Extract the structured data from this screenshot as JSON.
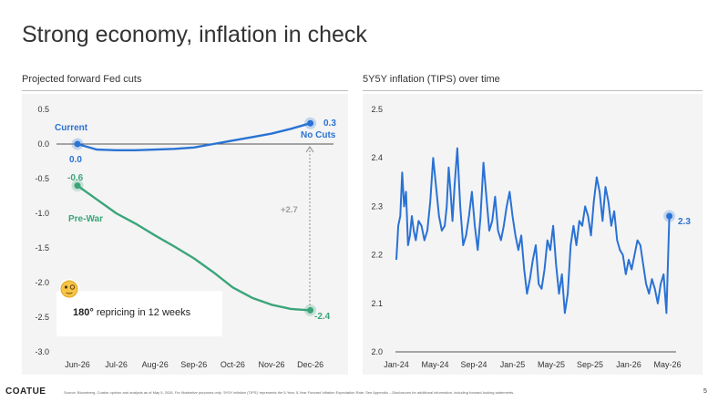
{
  "title": "Strong economy, inflation in check",
  "footer": {
    "logo": "COATUE",
    "source": "Source: Bloomberg, Coatue opinion and analysis as of May 5, 2026. For illustrative purposes only. '5Y5Y inflation (TIPS)' represents the 5-Year, 5-Year Forward Inflation Expectation Rate. See Appendix – Disclosures for additional information, including forward-looking statements.",
    "page": "5"
  },
  "colors": {
    "blue": "#2a72d4",
    "green": "#3aa57a",
    "grid": "#555555",
    "panel": "#f4f4f4"
  },
  "chart_data": [
    {
      "type": "line",
      "title": "Projected forward Fed cuts",
      "categories": [
        "Jun-26",
        "Jul-26",
        "Aug-26",
        "Sep-26",
        "Oct-26",
        "Nov-26",
        "Dec-26"
      ],
      "yticks": [
        "0.5",
        "0.0",
        "-0.5",
        "-1.0",
        "-1.5",
        "-2.0",
        "-2.5",
        "-3.0"
      ],
      "ylim": [
        -3.0,
        0.5
      ],
      "series": [
        {
          "name": "Current",
          "color": "#2a72d4",
          "x": [
            0,
            0.5,
            1,
            1.5,
            2,
            2.5,
            3,
            3.5,
            4,
            4.5,
            5,
            5.5,
            6
          ],
          "values": [
            0.0,
            -0.08,
            -0.09,
            -0.09,
            -0.08,
            -0.07,
            -0.05,
            0.0,
            0.05,
            0.1,
            0.15,
            0.22,
            0.3
          ]
        },
        {
          "name": "Pre-War",
          "color": "#3aa57a",
          "x": [
            0,
            0.5,
            1,
            1.5,
            2,
            2.5,
            3,
            3.5,
            4,
            4.5,
            5,
            5.5,
            6
          ],
          "values": [
            -0.6,
            -0.8,
            -1.0,
            -1.15,
            -1.32,
            -1.48,
            -1.65,
            -1.85,
            -2.07,
            -2.22,
            -2.32,
            -2.38,
            -2.4
          ]
        }
      ],
      "labels": {
        "current_name": "Current",
        "current_start": "0.0",
        "current_end": "0.3",
        "no_cuts": "No Cuts",
        "prewar_name": "Pre-War",
        "prewar_start": "-0.6",
        "prewar_end": "-2.4",
        "gap": "+2.7"
      },
      "callout": {
        "emoji": "🧐",
        "strong": "180°",
        "text": " repricing in 12 weeks"
      }
    },
    {
      "type": "line",
      "title": "5Y5Y inflation (TIPS) over time",
      "xticks": [
        "Jan-24",
        "May-24",
        "Sep-24",
        "Jan-25",
        "May-25",
        "Sep-25",
        "Jan-26",
        "May-26"
      ],
      "yticks": [
        "2.5",
        "2.4",
        "2.3",
        "2.2",
        "2.1",
        "2.0"
      ],
      "ylim": [
        2.0,
        2.5
      ],
      "xlim": [
        0,
        29
      ],
      "series": [
        {
          "name": "5Y5Y inflation (TIPS)",
          "color": "#2a72d4",
          "x": [
            0,
            0.2,
            0.4,
            0.6,
            0.8,
            1.0,
            1.2,
            1.4,
            1.6,
            1.8,
            2.0,
            2.3,
            2.6,
            2.9,
            3.2,
            3.5,
            3.8,
            4.1,
            4.4,
            4.7,
            5.0,
            5.2,
            5.4,
            5.6,
            5.8,
            6.0,
            6.3,
            6.6,
            6.9,
            7.2,
            7.5,
            7.8,
            8.1,
            8.4,
            8.7,
            9.0,
            9.3,
            9.6,
            9.9,
            10.2,
            10.5,
            10.8,
            11.1,
            11.4,
            11.7,
            12.0,
            12.3,
            12.6,
            12.9,
            13.2,
            13.5,
            13.8,
            14.1,
            14.4,
            14.7,
            15.0,
            15.3,
            15.6,
            15.9,
            16.2,
            16.5,
            16.8,
            17.1,
            17.4,
            17.7,
            18.0,
            18.3,
            18.6,
            18.9,
            19.2,
            19.5,
            19.8,
            20.1,
            20.4,
            20.7,
            21.0,
            21.3,
            21.6,
            21.9,
            22.2,
            22.5,
            22.8,
            23.1,
            23.4,
            23.7,
            24.0,
            24.3,
            24.6,
            24.9,
            25.2,
            25.5,
            25.8,
            26.1,
            26.4,
            26.7,
            27.0,
            27.3,
            27.6,
            27.9,
            28.2
          ],
          "values": [
            2.19,
            2.26,
            2.28,
            2.37,
            2.3,
            2.33,
            2.22,
            2.24,
            2.28,
            2.25,
            2.23,
            2.27,
            2.26,
            2.23,
            2.25,
            2.31,
            2.4,
            2.34,
            2.28,
            2.25,
            2.26,
            2.3,
            2.38,
            2.33,
            2.27,
            2.34,
            2.42,
            2.3,
            2.22,
            2.24,
            2.28,
            2.33,
            2.26,
            2.21,
            2.28,
            2.39,
            2.32,
            2.25,
            2.27,
            2.32,
            2.25,
            2.23,
            2.26,
            2.3,
            2.33,
            2.28,
            2.24,
            2.21,
            2.24,
            2.17,
            2.12,
            2.15,
            2.19,
            2.22,
            2.14,
            2.13,
            2.17,
            2.23,
            2.21,
            2.26,
            2.18,
            2.12,
            2.16,
            2.08,
            2.12,
            2.22,
            2.26,
            2.22,
            2.27,
            2.26,
            2.3,
            2.28,
            2.24,
            2.31,
            2.36,
            2.33,
            2.27,
            2.34,
            2.31,
            2.26,
            2.29,
            2.23,
            2.21,
            2.2,
            2.16,
            2.19,
            2.17,
            2.2,
            2.23,
            2.22,
            2.18,
            2.14,
            2.12,
            2.15,
            2.13,
            2.1,
            2.14,
            2.16,
            2.08,
            2.28
          ]
        }
      ],
      "end_label": "2.3"
    }
  ]
}
